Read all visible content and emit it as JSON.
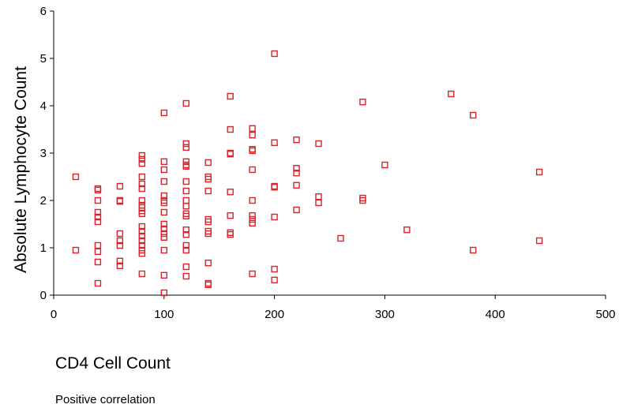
{
  "chart_data": {
    "type": "scatter",
    "title": "",
    "xlabel": "CD4 Cell Count",
    "ylabel": "Absolute Lymphocyte Count",
    "xlim": [
      0,
      500
    ],
    "ylim": [
      0,
      6
    ],
    "xticks": [
      0,
      100,
      200,
      300,
      400,
      500
    ],
    "yticks": [
      0,
      1,
      2,
      3,
      4,
      5,
      6
    ],
    "grid": false,
    "marker": "open-square",
    "marker_color": "#e0202a",
    "points": [
      [
        20,
        2.5
      ],
      [
        20,
        0.95
      ],
      [
        40,
        2.25
      ],
      [
        40,
        2.22
      ],
      [
        40,
        2.0
      ],
      [
        40,
        1.75
      ],
      [
        40,
        1.65
      ],
      [
        40,
        1.55
      ],
      [
        40,
        1.05
      ],
      [
        40,
        0.92
      ],
      [
        40,
        0.7
      ],
      [
        40,
        0.25
      ],
      [
        60,
        2.3
      ],
      [
        60,
        2.0
      ],
      [
        60,
        1.98
      ],
      [
        60,
        1.3
      ],
      [
        60,
        1.15
      ],
      [
        60,
        1.05
      ],
      [
        60,
        0.72
      ],
      [
        60,
        0.62
      ],
      [
        80,
        2.95
      ],
      [
        80,
        2.87
      ],
      [
        80,
        2.78
      ],
      [
        80,
        2.5
      ],
      [
        80,
        2.35
      ],
      [
        80,
        2.25
      ],
      [
        80,
        2.0
      ],
      [
        80,
        1.9
      ],
      [
        80,
        1.85
      ],
      [
        80,
        1.78
      ],
      [
        80,
        1.72
      ],
      [
        80,
        1.45
      ],
      [
        80,
        1.35
      ],
      [
        80,
        1.25
      ],
      [
        80,
        1.15
      ],
      [
        80,
        1.05
      ],
      [
        80,
        0.95
      ],
      [
        80,
        0.88
      ],
      [
        80,
        0.45
      ],
      [
        100,
        3.85
      ],
      [
        100,
        2.82
      ],
      [
        100,
        2.65
      ],
      [
        100,
        2.4
      ],
      [
        100,
        2.1
      ],
      [
        100,
        2.0
      ],
      [
        100,
        1.95
      ],
      [
        100,
        1.75
      ],
      [
        100,
        1.5
      ],
      [
        100,
        1.4
      ],
      [
        100,
        1.3
      ],
      [
        100,
        1.22
      ],
      [
        100,
        0.95
      ],
      [
        100,
        0.42
      ],
      [
        100,
        0.05
      ],
      [
        120,
        4.05
      ],
      [
        120,
        3.2
      ],
      [
        120,
        3.12
      ],
      [
        120,
        2.82
      ],
      [
        120,
        2.75
      ],
      [
        120,
        2.72
      ],
      [
        120,
        2.4
      ],
      [
        120,
        2.2
      ],
      [
        120,
        2.0
      ],
      [
        120,
        1.88
      ],
      [
        120,
        1.72
      ],
      [
        120,
        1.67
      ],
      [
        120,
        1.38
      ],
      [
        120,
        1.28
      ],
      [
        120,
        1.05
      ],
      [
        120,
        0.95
      ],
      [
        120,
        0.6
      ],
      [
        120,
        0.4
      ],
      [
        140,
        2.8
      ],
      [
        140,
        2.5
      ],
      [
        140,
        2.45
      ],
      [
        140,
        2.2
      ],
      [
        140,
        1.6
      ],
      [
        140,
        1.55
      ],
      [
        140,
        1.35
      ],
      [
        140,
        1.3
      ],
      [
        140,
        0.68
      ],
      [
        140,
        0.25
      ],
      [
        140,
        0.22
      ],
      [
        160,
        4.2
      ],
      [
        160,
        3.5
      ],
      [
        160,
        3.0
      ],
      [
        160,
        2.98
      ],
      [
        160,
        2.18
      ],
      [
        160,
        1.68
      ],
      [
        160,
        1.32
      ],
      [
        160,
        1.28
      ],
      [
        180,
        3.52
      ],
      [
        180,
        3.38
      ],
      [
        180,
        3.08
      ],
      [
        180,
        3.05
      ],
      [
        180,
        2.65
      ],
      [
        180,
        2.0
      ],
      [
        180,
        1.68
      ],
      [
        180,
        1.6
      ],
      [
        180,
        1.52
      ],
      [
        180,
        0.45
      ],
      [
        200,
        5.1
      ],
      [
        200,
        3.22
      ],
      [
        200,
        2.3
      ],
      [
        200,
        2.28
      ],
      [
        200,
        1.65
      ],
      [
        200,
        0.55
      ],
      [
        200,
        0.32
      ],
      [
        220,
        3.28
      ],
      [
        220,
        2.68
      ],
      [
        220,
        2.58
      ],
      [
        220,
        2.32
      ],
      [
        220,
        1.8
      ],
      [
        240,
        3.2
      ],
      [
        240,
        2.08
      ],
      [
        240,
        1.95
      ],
      [
        260,
        1.2
      ],
      [
        280,
        4.08
      ],
      [
        280,
        2.05
      ],
      [
        280,
        2.0
      ],
      [
        300,
        2.75
      ],
      [
        320,
        1.38
      ],
      [
        360,
        4.25
      ],
      [
        380,
        3.8
      ],
      [
        380,
        0.95
      ],
      [
        440,
        2.6
      ],
      [
        440,
        1.15
      ]
    ]
  },
  "caption": "Positive correlation"
}
